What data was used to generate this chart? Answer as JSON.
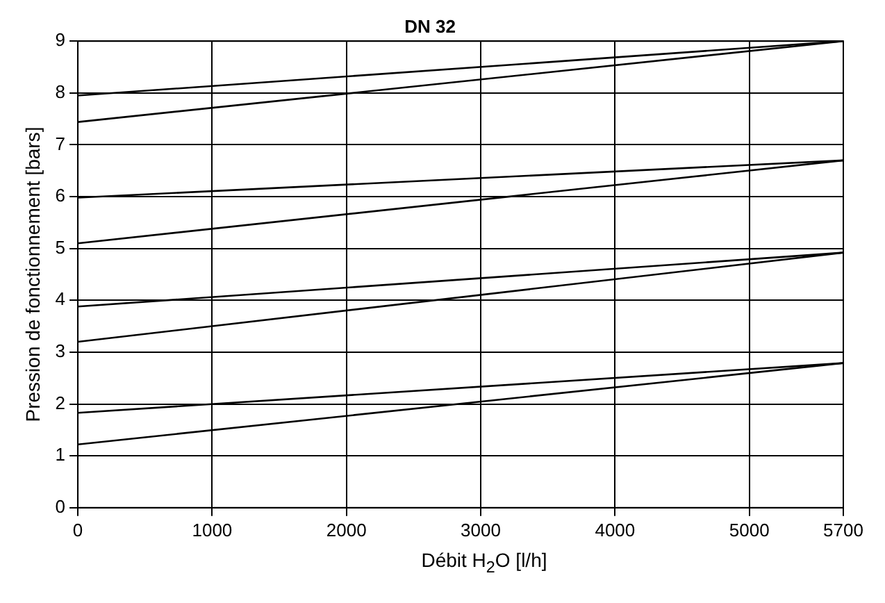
{
  "chart_data": {
    "type": "line",
    "title": "DN 32",
    "xlabel": "Débit H$_{2}$O [l/h]",
    "ylabel": "Pression de fonctionnement [bars]",
    "x": [
      0,
      5700
    ],
    "series": [
      {
        "color": "#000000",
        "values": [
          7.95,
          9
        ]
      },
      {
        "color": "#000000",
        "values": [
          7.44,
          9
        ]
      },
      {
        "color": "#000000",
        "values": [
          5.98,
          6.7
        ]
      },
      {
        "color": "#000000",
        "values": [
          5.1,
          6.7
        ]
      },
      {
        "color": "#000000",
        "values": [
          3.88,
          4.92
        ]
      },
      {
        "color": "#000000",
        "values": [
          3.2,
          4.92
        ]
      },
      {
        "color": "#000000",
        "values": [
          1.83,
          2.79
        ]
      },
      {
        "color": "#000000",
        "values": [
          1.22,
          2.79
        ]
      }
    ],
    "xlim": [
      0,
      5700
    ],
    "xticks": [
      0,
      1000,
      2000,
      3000,
      4000,
      5000,
      5700
    ],
    "ylim": [
      0,
      9
    ],
    "yticks": [
      0,
      1,
      2,
      3,
      4,
      5,
      6,
      7,
      8,
      9
    ],
    "grid": true,
    "legend": false,
    "marker": "none",
    "line_style": "solid"
  }
}
